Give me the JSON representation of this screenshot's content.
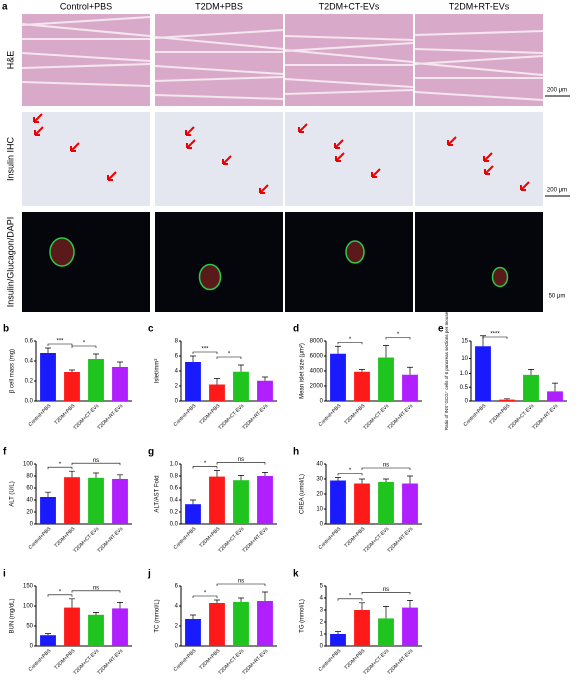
{
  "panel_a": {
    "label": "a",
    "columns": [
      "Control+PBS",
      "T2DM+PBS",
      "T2DM+CT-EVs",
      "T2DM+RT-EVs"
    ],
    "rows": [
      "H&E",
      "Insulin IHC",
      "Insulin/Glucagon/DAPI"
    ],
    "scale_bars": [
      "200 μm",
      "200 μm",
      "50 μm"
    ]
  },
  "chart_data": [
    {
      "type": "bar",
      "panel": "b",
      "y_label": "β cell mass (mg)",
      "categories": [
        "Control+PBS",
        "T2DM+PBS",
        "T2DM+CT-EVs",
        "T2DM+RT-EVs"
      ],
      "values": [
        0.48,
        0.29,
        0.42,
        0.34
      ],
      "errors": [
        0.05,
        0.02,
        0.05,
        0.05
      ],
      "colors": [
        "#1a1aff",
        "#ff1a1a",
        "#1fc41f",
        "#b01fff"
      ],
      "ylim": [
        0,
        0.6
      ],
      "yticks": [
        {
          "value": 0,
          "label": "0.0"
        },
        0.2,
        0.4,
        0.6
      ],
      "significance": [
        {
          "between": [
            "Control+PBS",
            "T2DM+PBS"
          ],
          "label": "***"
        },
        {
          "between": [
            "T2DM+PBS",
            "T2DM+CT-EVs"
          ],
          "label": "*"
        }
      ]
    },
    {
      "type": "bar",
      "panel": "c",
      "y_label": "Islet/mm²",
      "categories": [
        "Control+PBS",
        "T2DM+PBS",
        "T2DM+CT-EVs",
        "T2DM+RT-EVs"
      ],
      "values": [
        5.2,
        2.2,
        3.9,
        2.7
      ],
      "errors": [
        0.8,
        0.8,
        0.9,
        0.5
      ],
      "colors": [
        "#1a1aff",
        "#ff1a1a",
        "#1fc41f",
        "#b01fff"
      ],
      "ylim": [
        0,
        8
      ],
      "yticks": [
        0,
        2,
        4,
        6,
        8
      ],
      "significance": [
        {
          "between": [
            "Control+PBS",
            "T2DM+PBS"
          ],
          "label": "***"
        },
        {
          "between": [
            "T2DM+PBS",
            "T2DM+CT-EVs"
          ],
          "label": "*"
        }
      ]
    },
    {
      "type": "bar",
      "panel": "d",
      "y_label": "Mean islet size (μm²)",
      "categories": [
        "Control+PBS",
        "T2DM+PBS",
        "T2DM+CT-EVs",
        "T2DM+RT-EVs"
      ],
      "values": [
        6300,
        3900,
        5800,
        3500
      ],
      "errors": [
        1000,
        300,
        1600,
        1000
      ],
      "colors": [
        "#1a1aff",
        "#ff1a1a",
        "#1fc41f",
        "#b01fff"
      ],
      "ylim": [
        0,
        8000
      ],
      "yticks": [
        0,
        2000,
        4000,
        6000,
        8000
      ],
      "significance": [
        {
          "between": [
            "Control+PBS",
            "T2DM+PBS"
          ],
          "label": "*"
        },
        {
          "between": [
            "T2DM+CT-EVs",
            "T2DM+RT-EVs"
          ],
          "label": "*"
        }
      ]
    },
    {
      "type": "bar",
      "panel": "e",
      "y_label": "Ratio of INS⁺GCG⁺ cells of 6 pancreas sections per mouse",
      "categories": [
        "Control+PBS",
        "T2DM+PBS",
        "T2DM+CT-EVs",
        "T2DM+RT-EVs"
      ],
      "values": [
        13.5,
        0.05,
        0.95,
        0.35
      ],
      "errors": [
        3,
        0.03,
        0.2,
        0.3
      ],
      "colors": [
        "#1a1aff",
        "#ff1a1a",
        "#1fc41f",
        "#b01fff"
      ],
      "ylim": [
        0,
        15
      ],
      "ybreak": [
        1.2,
        9
      ],
      "yticks": [
        0,
        0.5,
        {
          "value": 1,
          "label": "1.0"
        },
        10,
        15
      ],
      "significance": [
        {
          "between": [
            "Control+PBS",
            "T2DM+PBS"
          ],
          "label": "****"
        }
      ]
    },
    {
      "type": "bar",
      "panel": "f",
      "y_label": "ALT (U/L)",
      "categories": [
        "Control+PBS",
        "T2DM+PBS",
        "T2DM+CT-EVs",
        "T2DM+RT-EVs"
      ],
      "values": [
        45,
        78,
        77,
        75
      ],
      "errors": [
        8,
        10,
        8,
        7
      ],
      "colors": [
        "#1a1aff",
        "#ff1a1a",
        "#1fc41f",
        "#b01fff"
      ],
      "ylim": [
        0,
        100
      ],
      "yticks": [
        0,
        20,
        40,
        60,
        80,
        100
      ],
      "significance": [
        {
          "between": [
            "Control+PBS",
            "T2DM+PBS"
          ],
          "label": "*"
        },
        {
          "between": [
            "T2DM+PBS",
            "T2DM+RT-EVs"
          ],
          "label": "ns"
        }
      ]
    },
    {
      "type": "bar",
      "panel": "g",
      "y_label": "ALT/AST Fold",
      "categories": [
        "Control+PBS",
        "T2DM+PBS",
        "T2DM+CT-EVs",
        "T2DM+RT-EVs"
      ],
      "values": [
        0.33,
        0.79,
        0.73,
        0.8
      ],
      "errors": [
        0.07,
        0.1,
        0.08,
        0.06
      ],
      "colors": [
        "#1a1aff",
        "#ff1a1a",
        "#1fc41f",
        "#b01fff"
      ],
      "ylim": [
        0,
        1
      ],
      "yticks": [
        {
          "value": 0,
          "label": "0.0"
        },
        0.2,
        0.4,
        0.6,
        0.8,
        {
          "value": 1,
          "label": "1.0"
        }
      ],
      "significance": [
        {
          "between": [
            "Control+PBS",
            "T2DM+PBS"
          ],
          "label": "*"
        },
        {
          "between": [
            "T2DM+PBS",
            "T2DM+RT-EVs"
          ],
          "label": "ns"
        }
      ]
    },
    {
      "type": "bar",
      "panel": "h",
      "y_label": "CREA (umol/L)",
      "categories": [
        "Control+PBS",
        "T2DM+PBS",
        "T2DM+CT-EVs",
        "T2DM+RT-EVs"
      ],
      "values": [
        29,
        27,
        28,
        27
      ],
      "errors": [
        2,
        3,
        2,
        5
      ],
      "colors": [
        "#1a1aff",
        "#ff1a1a",
        "#1fc41f",
        "#b01fff"
      ],
      "ylim": [
        0,
        40
      ],
      "yticks": [
        0,
        10,
        20,
        30,
        40
      ],
      "significance": [
        {
          "between": [
            "Control+PBS",
            "T2DM+PBS"
          ],
          "label": "*"
        },
        {
          "between": [
            "T2DM+PBS",
            "T2DM+RT-EVs"
          ],
          "label": "ns"
        }
      ]
    },
    {
      "type": "bar",
      "panel": "i",
      "y_label": "BUN (mg/dL)",
      "categories": [
        "Control+PBS",
        "T2DM+PBS",
        "T2DM+CT-EVs",
        "T2DM+RT-EVs"
      ],
      "values": [
        27,
        96,
        78,
        94
      ],
      "errors": [
        4,
        22,
        6,
        15
      ],
      "colors": [
        "#1a1aff",
        "#ff1a1a",
        "#1fc41f",
        "#b01fff"
      ],
      "ylim": [
        0,
        150
      ],
      "yticks": [
        0,
        50,
        100,
        150
      ],
      "significance": [
        {
          "between": [
            "Control+PBS",
            "T2DM+PBS"
          ],
          "label": "*"
        },
        {
          "between": [
            "T2DM+PBS",
            "T2DM+RT-EVs"
          ],
          "label": "ns"
        }
      ]
    },
    {
      "type": "bar",
      "panel": "j",
      "y_label": "TC (mmol/L)",
      "categories": [
        "Control+PBS",
        "T2DM+PBS",
        "T2DM+CT-EVs",
        "T2DM+RT-EVs"
      ],
      "values": [
        2.7,
        4.3,
        4.4,
        4.5
      ],
      "errors": [
        0.4,
        0.3,
        0.4,
        0.9
      ],
      "colors": [
        "#1a1aff",
        "#ff1a1a",
        "#1fc41f",
        "#b01fff"
      ],
      "ylim": [
        0,
        6
      ],
      "yticks": [
        0,
        2,
        4,
        6
      ],
      "significance": [
        {
          "between": [
            "Control+PBS",
            "T2DM+PBS"
          ],
          "label": "*"
        },
        {
          "between": [
            "T2DM+PBS",
            "T2DM+RT-EVs"
          ],
          "label": "ns"
        }
      ]
    },
    {
      "type": "bar",
      "panel": "k",
      "y_label": "TG (mmol/L)",
      "categories": [
        "Control+PBS",
        "T2DM+PBS",
        "T2DM+CT-EVs",
        "T2DM+RT-EVs"
      ],
      "values": [
        1.0,
        3.0,
        2.3,
        3.2
      ],
      "errors": [
        0.2,
        0.6,
        1.0,
        0.6
      ],
      "colors": [
        "#1a1aff",
        "#ff1a1a",
        "#1fc41f",
        "#b01fff"
      ],
      "ylim": [
        0,
        5
      ],
      "yticks": [
        0,
        1,
        2,
        3,
        4,
        5
      ],
      "significance": [
        {
          "between": [
            "Control+PBS",
            "T2DM+PBS"
          ],
          "label": "*"
        },
        {
          "between": [
            "T2DM+PBS",
            "T2DM+RT-EVs"
          ],
          "label": "ns"
        }
      ]
    }
  ]
}
